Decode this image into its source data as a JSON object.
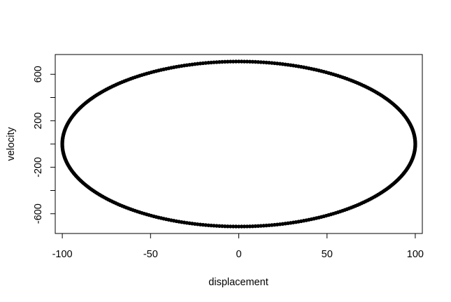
{
  "chart_data": {
    "type": "scatter",
    "title": "",
    "xlabel": "displacement",
    "ylabel": "velocity",
    "xlim": [
      -104,
      104
    ],
    "ylim": [
      -770,
      770
    ],
    "x_ticks": [
      -100,
      -50,
      0,
      50,
      100
    ],
    "y_ticks": [
      -600,
      -400,
      -200,
      0,
      200,
      400,
      600
    ],
    "y_tick_labels": [
      "-600",
      "",
      "-200",
      "",
      "200",
      "",
      "600"
    ],
    "series": [
      {
        "curve": "ellipse",
        "center": [
          0,
          0
        ],
        "x_amplitude": 100,
        "y_amplitude": 710,
        "points": 400,
        "color": "#000000"
      }
    ],
    "grid": false,
    "legend": "none"
  }
}
